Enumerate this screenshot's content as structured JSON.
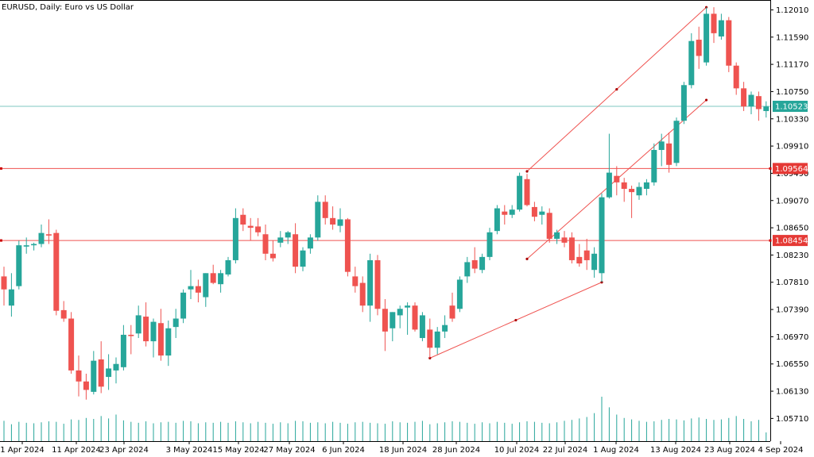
{
  "title": "EURUSD, Daily:  Euro vs US Dollar",
  "chart_data": {
    "type": "candlestick",
    "symbol": "EURUSD",
    "timeframe": "Daily",
    "description": "Euro vs US Dollar",
    "ylim": [
      1.0536,
      1.1215
    ],
    "y_ticks": [
      "1.12010",
      "1.11590",
      "1.11170",
      "1.10750",
      "1.10330",
      "1.09910",
      "1.09490",
      "1.09070",
      "1.08650",
      "1.08230",
      "1.07810",
      "1.07390",
      "1.06970",
      "1.06550",
      "1.06130",
      "1.05710"
    ],
    "x_ticks": [
      "1 Apr 2024",
      "11 Apr 2024",
      "23 Apr 2024",
      "3 May 2024",
      "15 May 2024",
      "27 May 2024",
      "6 Jun 2024",
      "18 Jun 2024",
      "28 Jun 2024",
      "10 Jul 2024",
      "22 Jul 2024",
      "1 Aug 2024",
      "13 Aug 2024",
      "23 Aug 2024",
      "4 Sep 2024"
    ],
    "colors": {
      "bull": "#26a69a",
      "bear": "#ef5350",
      "volume": "#26a69a",
      "current_line": "#7fc7c0",
      "level_line": "#ef5350",
      "trend_line": "#ef5350"
    },
    "current_price": {
      "value": 1.10523,
      "label": "1.10523"
    },
    "price_levels": [
      {
        "value": 1.09564,
        "label": "1.09564"
      },
      {
        "value": 1.08454,
        "label": "1.08454"
      }
    ],
    "trendlines": [
      {
        "from": {
          "x": 57,
          "y": 1.0664
        },
        "to": {
          "x": 80,
          "y": 1.0781
        }
      },
      {
        "from": {
          "x": 70,
          "y": 1.0817
        },
        "to": {
          "x": 94,
          "y": 1.1062
        }
      },
      {
        "from": {
          "x": 70,
          "y": 1.0952
        },
        "to": {
          "x": 94,
          "y": 1.1205
        }
      }
    ],
    "candles": [
      {
        "x": 0,
        "o": 1.079,
        "h": 1.0805,
        "l": 1.0745,
        "c": 1.077
      },
      {
        "x": 1,
        "o": 1.0745,
        "h": 1.0795,
        "l": 1.0728,
        "c": 1.077
      },
      {
        "x": 2,
        "o": 1.0775,
        "h": 1.0845,
        "l": 1.077,
        "c": 1.0838
      },
      {
        "x": 3,
        "o": 1.0836,
        "h": 1.085,
        "l": 1.0825,
        "c": 1.0838
      },
      {
        "x": 4,
        "o": 1.0838,
        "h": 1.0842,
        "l": 1.083,
        "c": 1.084
      },
      {
        "x": 5,
        "o": 1.084,
        "h": 1.087,
        "l": 1.0835,
        "c": 1.0857
      },
      {
        "x": 6,
        "o": 1.0855,
        "h": 1.0878,
        "l": 1.084,
        "c": 1.0853
      },
      {
        "x": 7,
        "o": 1.0857,
        "h": 1.0862,
        "l": 1.073,
        "c": 1.0737
      },
      {
        "x": 8,
        "o": 1.0738,
        "h": 1.0752,
        "l": 1.072,
        "c": 1.0725
      },
      {
        "x": 9,
        "o": 1.0725,
        "h": 1.0735,
        "l": 1.064,
        "c": 1.0645
      },
      {
        "x": 10,
        "o": 1.0645,
        "h": 1.0668,
        "l": 1.0605,
        "c": 1.0628
      },
      {
        "x": 11,
        "o": 1.0628,
        "h": 1.064,
        "l": 1.06,
        "c": 1.0615
      },
      {
        "x": 12,
        "o": 1.0612,
        "h": 1.0675,
        "l": 1.0608,
        "c": 1.066
      },
      {
        "x": 13,
        "o": 1.0662,
        "h": 1.069,
        "l": 1.061,
        "c": 1.062
      },
      {
        "x": 14,
        "o": 1.0635,
        "h": 1.067,
        "l": 1.0615,
        "c": 1.0648
      },
      {
        "x": 15,
        "o": 1.0645,
        "h": 1.0665,
        "l": 1.0625,
        "c": 1.0655
      },
      {
        "x": 16,
        "o": 1.065,
        "h": 1.0715,
        "l": 1.0645,
        "c": 1.07
      },
      {
        "x": 17,
        "o": 1.07,
        "h": 1.0715,
        "l": 1.067,
        "c": 1.0698
      },
      {
        "x": 18,
        "o": 1.0702,
        "h": 1.0745,
        "l": 1.0695,
        "c": 1.073
      },
      {
        "x": 19,
        "o": 1.0728,
        "h": 1.075,
        "l": 1.0682,
        "c": 1.069
      },
      {
        "x": 20,
        "o": 1.069,
        "h": 1.0725,
        "l": 1.0665,
        "c": 1.072
      },
      {
        "x": 21,
        "o": 1.0718,
        "h": 1.074,
        "l": 1.066,
        "c": 1.0668
      },
      {
        "x": 22,
        "o": 1.0668,
        "h": 1.0722,
        "l": 1.0652,
        "c": 1.071
      },
      {
        "x": 23,
        "o": 1.0712,
        "h": 1.074,
        "l": 1.0695,
        "c": 1.0725
      },
      {
        "x": 24,
        "o": 1.0725,
        "h": 1.077,
        "l": 1.0718,
        "c": 1.0765
      },
      {
        "x": 25,
        "o": 1.077,
        "h": 1.08,
        "l": 1.0755,
        "c": 1.0775
      },
      {
        "x": 26,
        "o": 1.0775,
        "h": 1.0785,
        "l": 1.075,
        "c": 1.0765
      },
      {
        "x": 27,
        "o": 1.0758,
        "h": 1.0795,
        "l": 1.0743,
        "c": 1.0795
      },
      {
        "x": 28,
        "o": 1.0795,
        "h": 1.0808,
        "l": 1.0778,
        "c": 1.078
      },
      {
        "x": 29,
        "o": 1.0778,
        "h": 1.08,
        "l": 1.0765,
        "c": 1.0795
      },
      {
        "x": 30,
        "o": 1.0793,
        "h": 1.082,
        "l": 1.079,
        "c": 1.0815
      },
      {
        "x": 31,
        "o": 1.0815,
        "h": 1.0895,
        "l": 1.081,
        "c": 1.088
      },
      {
        "x": 32,
        "o": 1.0885,
        "h": 1.0895,
        "l": 1.086,
        "c": 1.087
      },
      {
        "x": 33,
        "o": 1.0868,
        "h": 1.088,
        "l": 1.0845,
        "c": 1.0865
      },
      {
        "x": 34,
        "o": 1.0867,
        "h": 1.088,
        "l": 1.0852,
        "c": 1.0858
      },
      {
        "x": 35,
        "o": 1.0855,
        "h": 1.087,
        "l": 1.0815,
        "c": 1.0825
      },
      {
        "x": 36,
        "o": 1.0825,
        "h": 1.0845,
        "l": 1.0813,
        "c": 1.0818
      },
      {
        "x": 37,
        "o": 1.0842,
        "h": 1.086,
        "l": 1.0835,
        "c": 1.085
      },
      {
        "x": 38,
        "o": 1.085,
        "h": 1.086,
        "l": 1.084,
        "c": 1.0858
      },
      {
        "x": 39,
        "o": 1.0855,
        "h": 1.0872,
        "l": 1.0795,
        "c": 1.0805
      },
      {
        "x": 40,
        "o": 1.0805,
        "h": 1.0835,
        "l": 1.0798,
        "c": 1.083
      },
      {
        "x": 41,
        "o": 1.0833,
        "h": 1.0855,
        "l": 1.0825,
        "c": 1.085
      },
      {
        "x": 42,
        "o": 1.085,
        "h": 1.0915,
        "l": 1.0845,
        "c": 1.0905
      },
      {
        "x": 43,
        "o": 1.0905,
        "h": 1.0915,
        "l": 1.087,
        "c": 1.088
      },
      {
        "x": 44,
        "o": 1.088,
        "h": 1.0898,
        "l": 1.0862,
        "c": 1.087
      },
      {
        "x": 45,
        "o": 1.0868,
        "h": 1.0895,
        "l": 1.0858,
        "c": 1.0878
      },
      {
        "x": 46,
        "o": 1.0878,
        "h": 1.088,
        "l": 1.079,
        "c": 1.0797
      },
      {
        "x": 47,
        "o": 1.079,
        "h": 1.0805,
        "l": 1.0765,
        "c": 1.0775
      },
      {
        "x": 48,
        "o": 1.078,
        "h": 1.079,
        "l": 1.0735,
        "c": 1.0745
      },
      {
        "x": 49,
        "o": 1.0745,
        "h": 1.0825,
        "l": 1.072,
        "c": 1.0815
      },
      {
        "x": 50,
        "o": 1.0815,
        "h": 1.0823,
        "l": 1.073,
        "c": 1.074
      },
      {
        "x": 51,
        "o": 1.074,
        "h": 1.0755,
        "l": 1.0675,
        "c": 1.0705
      },
      {
        "x": 52,
        "o": 1.071,
        "h": 1.0735,
        "l": 1.069,
        "c": 1.0735
      },
      {
        "x": 53,
        "o": 1.073,
        "h": 1.0745,
        "l": 1.071,
        "c": 1.074
      },
      {
        "x": 54,
        "o": 1.0742,
        "h": 1.075,
        "l": 1.07,
        "c": 1.0745
      },
      {
        "x": 55,
        "o": 1.0745,
        "h": 1.075,
        "l": 1.0705,
        "c": 1.0708
      },
      {
        "x": 56,
        "o": 1.0695,
        "h": 1.0735,
        "l": 1.069,
        "c": 1.073
      },
      {
        "x": 57,
        "o": 1.0708,
        "h": 1.0725,
        "l": 1.0664,
        "c": 1.068
      },
      {
        "x": 58,
        "o": 1.068,
        "h": 1.0712,
        "l": 1.067,
        "c": 1.0705
      },
      {
        "x": 59,
        "o": 1.0705,
        "h": 1.073,
        "l": 1.0695,
        "c": 1.0715
      },
      {
        "x": 60,
        "o": 1.0745,
        "h": 1.0765,
        "l": 1.072,
        "c": 1.0725
      },
      {
        "x": 61,
        "o": 1.074,
        "h": 1.079,
        "l": 1.0735,
        "c": 1.0785
      },
      {
        "x": 62,
        "o": 1.079,
        "h": 1.082,
        "l": 1.078,
        "c": 1.0812
      },
      {
        "x": 63,
        "o": 1.0815,
        "h": 1.0835,
        "l": 1.0795,
        "c": 1.0802
      },
      {
        "x": 64,
        "o": 1.08,
        "h": 1.0825,
        "l": 1.0795,
        "c": 1.082
      },
      {
        "x": 65,
        "o": 1.082,
        "h": 1.0865,
        "l": 1.0815,
        "c": 1.0858
      },
      {
        "x": 66,
        "o": 1.086,
        "h": 1.09,
        "l": 1.0855,
        "c": 1.0895
      },
      {
        "x": 67,
        "o": 1.089,
        "h": 1.09,
        "l": 1.087,
        "c": 1.0885
      },
      {
        "x": 68,
        "o": 1.0885,
        "h": 1.09,
        "l": 1.088,
        "c": 1.0893
      },
      {
        "x": 69,
        "o": 1.0893,
        "h": 1.095,
        "l": 1.089,
        "c": 1.0945
      },
      {
        "x": 70,
        "o": 1.094,
        "h": 1.0948,
        "l": 1.0898,
        "c": 1.09
      },
      {
        "x": 71,
        "o": 1.0897,
        "h": 1.0905,
        "l": 1.0875,
        "c": 1.0882
      },
      {
        "x": 72,
        "o": 1.0885,
        "h": 1.0898,
        "l": 1.087,
        "c": 1.089
      },
      {
        "x": 73,
        "o": 1.0888,
        "h": 1.0895,
        "l": 1.0842,
        "c": 1.0848
      },
      {
        "x": 74,
        "o": 1.0848,
        "h": 1.0862,
        "l": 1.084,
        "c": 1.0858
      },
      {
        "x": 75,
        "o": 1.085,
        "h": 1.086,
        "l": 1.0835,
        "c": 1.0842
      },
      {
        "x": 76,
        "o": 1.085,
        "h": 1.0858,
        "l": 1.081,
        "c": 1.0815
      },
      {
        "x": 77,
        "o": 1.082,
        "h": 1.084,
        "l": 1.0805,
        "c": 1.081
      },
      {
        "x": 78,
        "o": 1.083,
        "h": 1.0848,
        "l": 1.08,
        "c": 1.0815
      },
      {
        "x": 79,
        "o": 1.08,
        "h": 1.0835,
        "l": 1.0788,
        "c": 1.0825
      },
      {
        "x": 80,
        "o": 1.0795,
        "h": 1.0918,
        "l": 1.0781,
        "c": 1.0912
      },
      {
        "x": 81,
        "o": 1.0912,
        "h": 1.101,
        "l": 1.091,
        "c": 1.095
      },
      {
        "x": 82,
        "o": 1.0945,
        "h": 1.096,
        "l": 1.0915,
        "c": 1.0935
      },
      {
        "x": 83,
        "o": 1.0935,
        "h": 1.0942,
        "l": 1.0905,
        "c": 1.0925
      },
      {
        "x": 84,
        "o": 1.0925,
        "h": 1.093,
        "l": 1.088,
        "c": 1.092
      },
      {
        "x": 85,
        "o": 1.0915,
        "h": 1.0935,
        "l": 1.0908,
        "c": 1.0928
      },
      {
        "x": 86,
        "o": 1.0925,
        "h": 1.094,
        "l": 1.0915,
        "c": 1.0935
      },
      {
        "x": 87,
        "o": 1.0935,
        "h": 1.0995,
        "l": 1.093,
        "c": 1.0985
      },
      {
        "x": 88,
        "o": 1.0985,
        "h": 1.101,
        "l": 1.096,
        "c": 1.0998
      },
      {
        "x": 89,
        "o": 1.0995,
        "h": 1.1012,
        "l": 1.095,
        "c": 1.0962
      },
      {
        "x": 90,
        "o": 1.0965,
        "h": 1.1035,
        "l": 1.096,
        "c": 1.103
      },
      {
        "x": 91,
        "o": 1.103,
        "h": 1.109,
        "l": 1.1025,
        "c": 1.1085
      },
      {
        "x": 92,
        "o": 1.1085,
        "h": 1.1165,
        "l": 1.108,
        "c": 1.1153
      },
      {
        "x": 93,
        "o": 1.1155,
        "h": 1.1175,
        "l": 1.111,
        "c": 1.113
      },
      {
        "x": 94,
        "o": 1.112,
        "h": 1.1205,
        "l": 1.1115,
        "c": 1.1195
      },
      {
        "x": 95,
        "o": 1.1195,
        "h": 1.1205,
        "l": 1.115,
        "c": 1.1165
      },
      {
        "x": 96,
        "o": 1.116,
        "h": 1.1195,
        "l": 1.1155,
        "c": 1.1185
      },
      {
        "x": 97,
        "o": 1.1185,
        "h": 1.119,
        "l": 1.1105,
        "c": 1.1115
      },
      {
        "x": 98,
        "o": 1.1115,
        "h": 1.112,
        "l": 1.107,
        "c": 1.108
      },
      {
        "x": 99,
        "o": 1.108,
        "h": 1.109,
        "l": 1.1045,
        "c": 1.1052
      },
      {
        "x": 100,
        "o": 1.1052,
        "h": 1.1075,
        "l": 1.104,
        "c": 1.107
      },
      {
        "x": 101,
        "o": 1.1068,
        "h": 1.1075,
        "l": 1.103,
        "c": 1.1048
      },
      {
        "x": 102,
        "o": 1.1045,
        "h": 1.106,
        "l": 1.1035,
        "c": 1.1052
      }
    ],
    "volume": [
      42,
      35,
      40,
      38,
      37,
      39,
      41,
      40,
      36,
      45,
      44,
      48,
      46,
      52,
      47,
      55,
      43,
      40,
      38,
      41,
      37,
      39,
      40,
      38,
      42,
      41,
      37,
      39,
      38,
      40,
      38,
      41,
      39,
      37,
      40,
      38,
      36,
      39,
      37,
      42,
      41,
      38,
      39,
      37,
      40,
      38,
      36,
      39,
      40,
      38,
      37,
      36,
      41,
      39,
      38,
      40,
      42,
      35,
      37,
      39,
      41,
      40,
      38,
      36,
      39,
      37,
      40,
      38,
      36,
      39,
      41,
      40,
      38,
      37,
      39,
      42,
      44,
      47,
      50,
      58,
      92,
      70,
      55,
      48,
      45,
      42,
      40,
      41,
      44,
      46,
      45,
      43,
      47,
      49,
      46,
      44,
      45,
      48,
      52,
      46,
      41,
      44,
      18
    ]
  }
}
